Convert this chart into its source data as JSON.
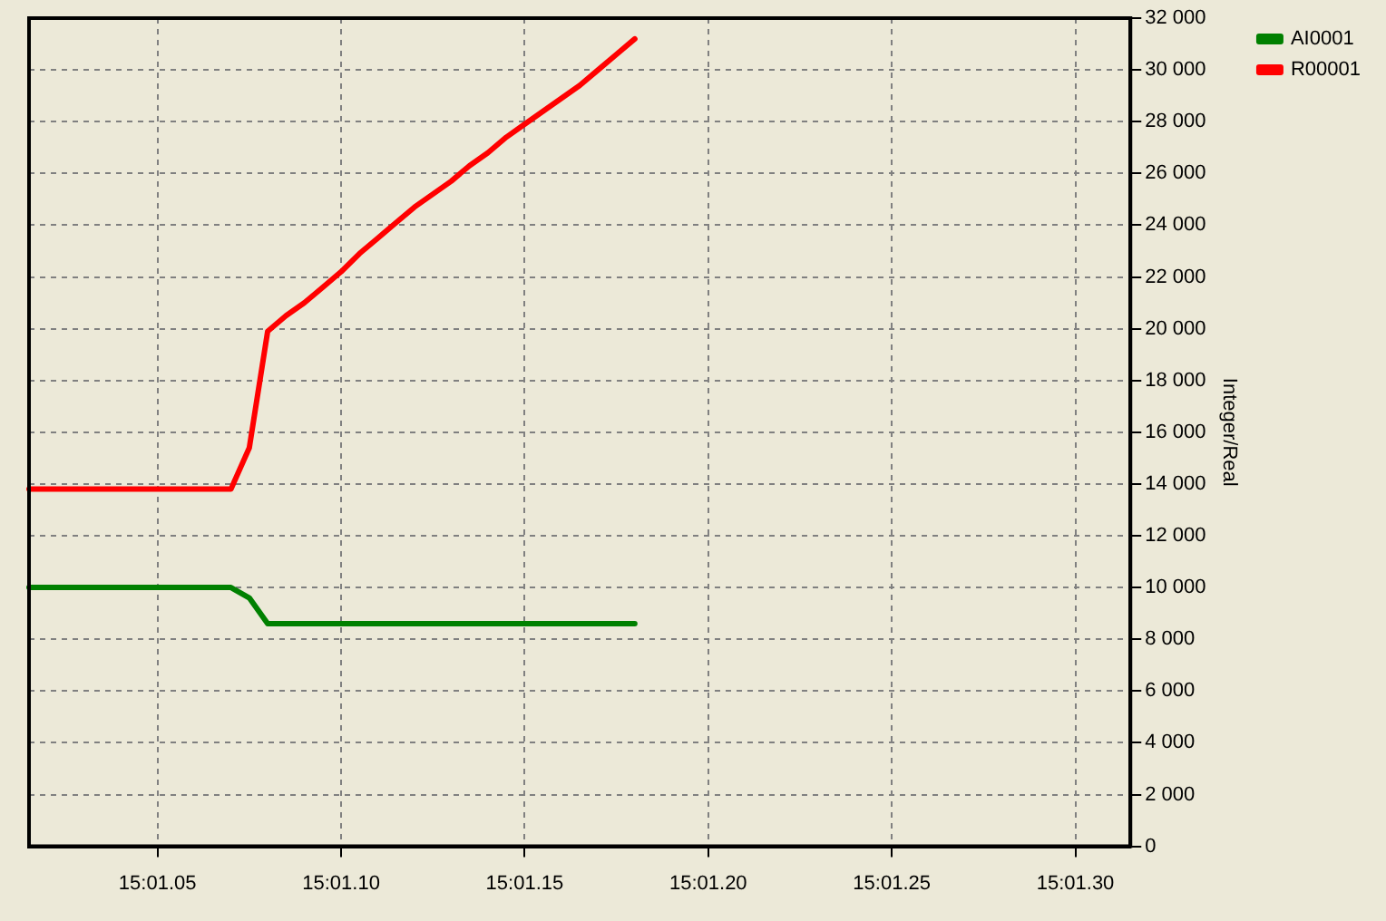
{
  "chart_data": {
    "type": "line",
    "ylabel": "Integer/Real",
    "categories": [
      null,
      null,
      null,
      null,
      null,
      null,
      null,
      "15:01.05",
      null,
      null,
      null,
      null,
      null,
      null,
      null,
      null,
      null,
      "15:01.10",
      null,
      null,
      null,
      null,
      null,
      null,
      null,
      null,
      null,
      "15:01.15",
      null,
      null,
      null,
      null,
      null,
      null,
      null,
      null,
      null,
      "15:01.20",
      null,
      null,
      null,
      null,
      null,
      null,
      null,
      null,
      null,
      "15:01.25",
      null,
      null,
      null,
      null,
      null,
      null,
      null,
      null,
      null,
      "15:01.30",
      null,
      null,
      null
    ],
    "ylim": [
      0,
      32000
    ],
    "yticks": [
      {
        "value": 0,
        "label": "0"
      },
      {
        "value": 2000,
        "label": "2 000"
      },
      {
        "value": 4000,
        "label": "4 000"
      },
      {
        "value": 6000,
        "label": "6 000"
      },
      {
        "value": 8000,
        "label": "8 000"
      },
      {
        "value": 10000,
        "label": "10 000"
      },
      {
        "value": 12000,
        "label": "12 000"
      },
      {
        "value": 14000,
        "label": "14 000"
      },
      {
        "value": 16000,
        "label": "16 000"
      },
      {
        "value": 18000,
        "label": "18 000"
      },
      {
        "value": 20000,
        "label": "20 000"
      },
      {
        "value": 22000,
        "label": "22 000"
      },
      {
        "value": 24000,
        "label": "24 000"
      },
      {
        "value": 26000,
        "label": "26 000"
      },
      {
        "value": 28000,
        "label": "28 000"
      },
      {
        "value": 30000,
        "label": "30 000"
      },
      {
        "value": 32000,
        "label": "32 000"
      }
    ],
    "grid": true,
    "legend": "top right",
    "marker": "none",
    "line_style": "solid",
    "series": [
      {
        "name": "AI0001",
        "color": "#008000",
        "values": [
          10000,
          10000,
          10000,
          10000,
          10000,
          10000,
          10000,
          10000,
          10000,
          10000,
          10000,
          10000,
          9600,
          8600,
          8600,
          8600,
          8600,
          8600,
          8600,
          8600,
          8600,
          8600,
          8600,
          8600,
          8600,
          8600,
          8600,
          8600,
          8600,
          8600,
          8600,
          8600,
          8600,
          8600,
          null,
          null,
          null,
          null,
          null,
          null,
          null,
          null,
          null,
          null,
          null,
          null,
          null,
          null,
          null,
          null,
          null,
          null,
          null,
          null,
          null,
          null,
          null,
          null,
          null,
          null,
          null
        ]
      },
      {
        "name": "R00001",
        "color": "#ff0000",
        "values": [
          13800,
          13800,
          13800,
          13800,
          13800,
          13800,
          13800,
          13800,
          13800,
          13800,
          13800,
          13800,
          15400,
          19900,
          20500,
          21000,
          21600,
          22200,
          22900,
          23500,
          24100,
          24700,
          25200,
          25700,
          26300,
          26800,
          27400,
          27900,
          28400,
          28900,
          29400,
          30000,
          30600,
          31200,
          null,
          null,
          null,
          null,
          null,
          null,
          null,
          null,
          null,
          null,
          null,
          null,
          null,
          null,
          null,
          null,
          null,
          null,
          null,
          null,
          null,
          null,
          null,
          null,
          null,
          null,
          null
        ]
      }
    ]
  }
}
